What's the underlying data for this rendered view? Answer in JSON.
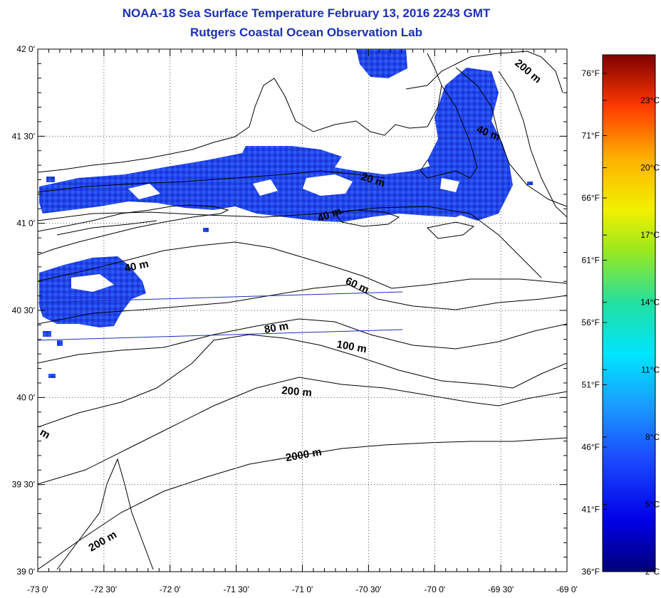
{
  "title": "NOAA-18 Sea Surface Temperature February 13, 2016 2243 GMT",
  "subtitle": "Rutgers Coastal Ocean Observation Lab",
  "lat_labels": [
    "42 0'",
    "41 30'",
    "41 0'",
    "40 30'",
    "40 0'",
    "39 30'",
    "39 0'"
  ],
  "lon_labels": [
    "-73 0'",
    "-72 30'",
    "-72 0'",
    "-71 30'",
    "-71 0'",
    "-70 30'",
    "-70 0'",
    "-69 30'",
    "-69 0'"
  ],
  "contour_labels": [
    {
      "text": "200 m"
    },
    {
      "text": "40 m"
    },
    {
      "text": "20 m"
    },
    {
      "text": "40 m"
    },
    {
      "text": "40 m"
    },
    {
      "text": "60 m"
    },
    {
      "text": "80 m"
    },
    {
      "text": "100 m"
    },
    {
      "text": "200 m"
    },
    {
      "text": "2000 m"
    },
    {
      "text": "200 m"
    },
    {
      "text": "m"
    }
  ],
  "colorbar": {
    "celsius": [
      "23°C",
      "20°C",
      "17°C",
      "14°C",
      "11°C",
      "8°C",
      "5°C",
      "2°C"
    ],
    "fahrenheit": [
      "76°F",
      "71°F",
      "66°F",
      "61°F",
      "56°F",
      "51°F",
      "46°F",
      "41°F",
      "36°F"
    ]
  },
  "colors": {
    "title": "#1a2fb5",
    "sst_patch": "#1f3be0"
  }
}
